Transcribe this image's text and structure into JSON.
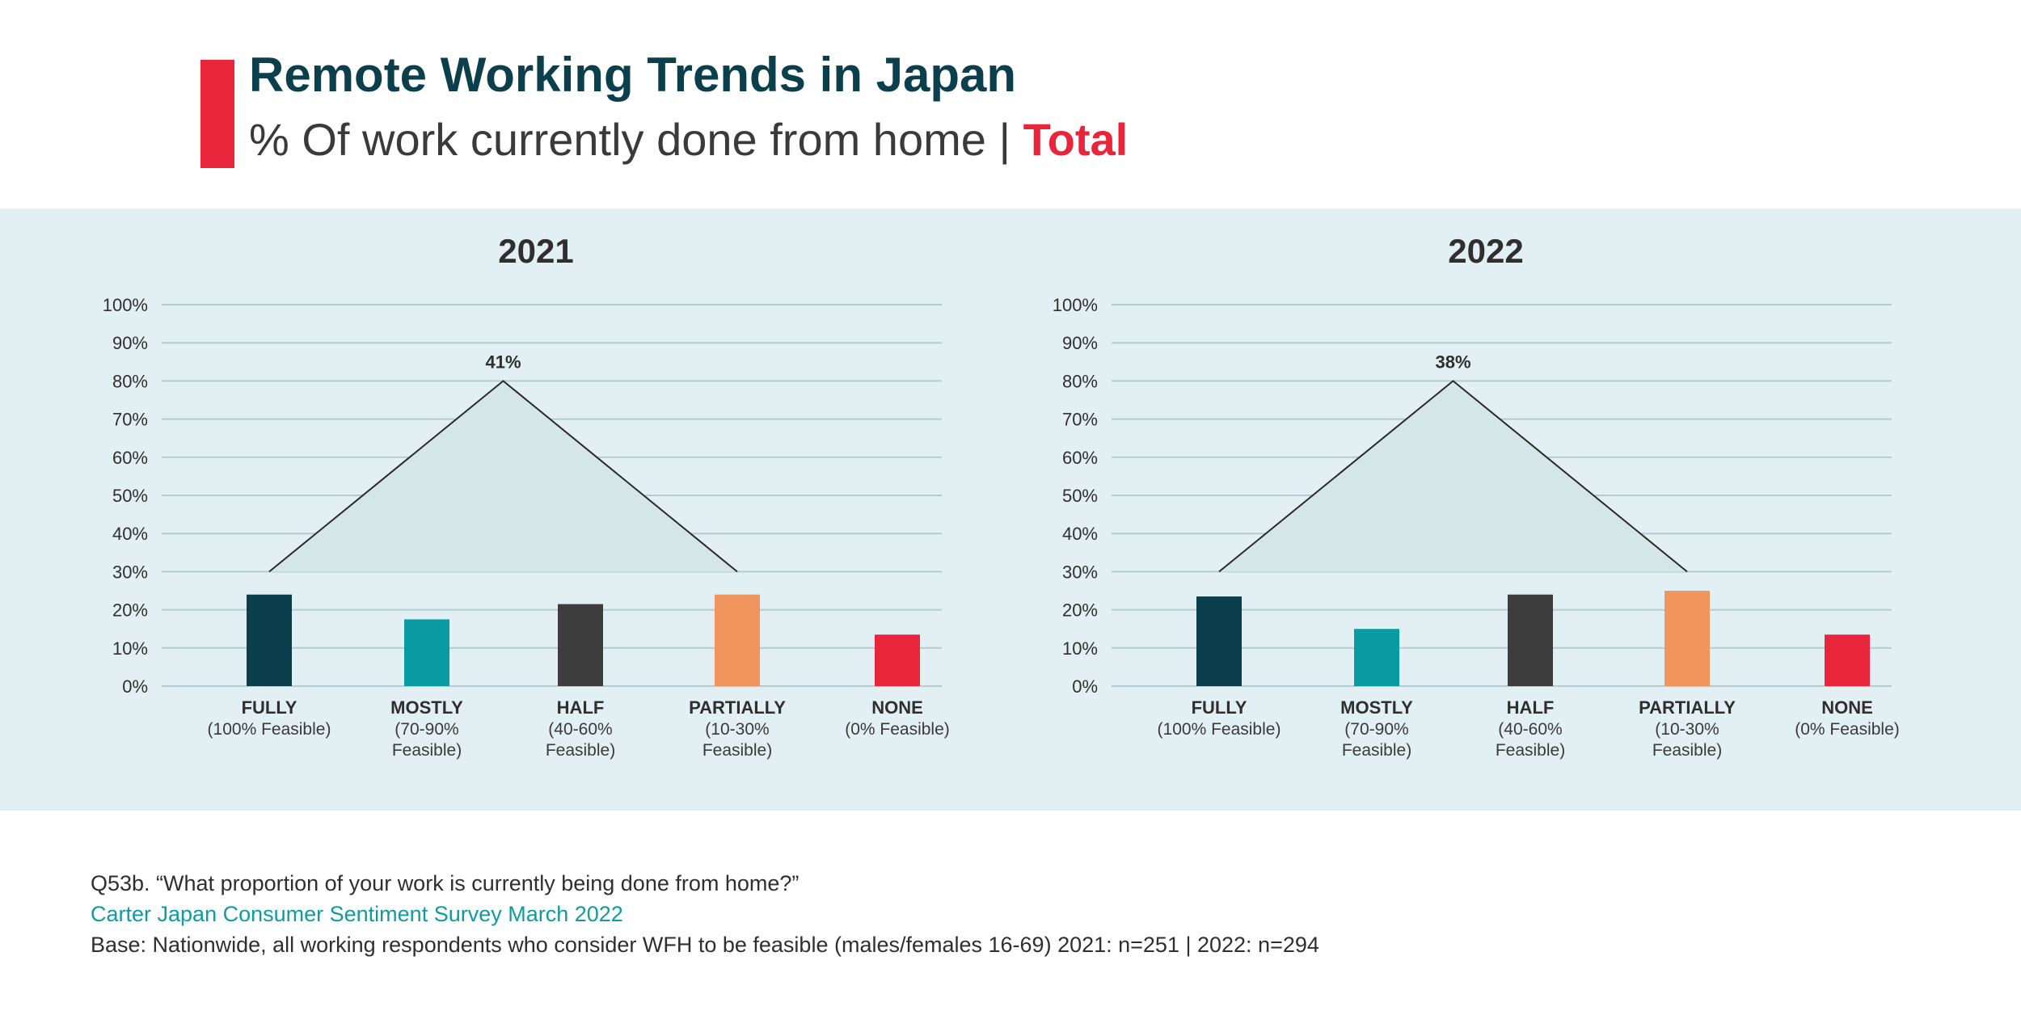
{
  "header": {
    "title": "Remote Working Trends in Japan",
    "subtitle_main": "% Of work currently done from home",
    "subtitle_sep": "|",
    "subtitle_highlight": "Total"
  },
  "colors": {
    "accent": "#e8253a",
    "title": "#0b3f4c",
    "band": "#e3f0f3",
    "grid": "#b5cbd1",
    "fully": "#0b3f4c",
    "mostly": "#0a9aa2",
    "half": "#3d3d3d",
    "partially": "#f0955e",
    "none": "#e8253a",
    "triangle_fill": "#d4e6e8",
    "triangle_line": "#2a2a2a"
  },
  "chart_data": [
    {
      "type": "bar",
      "title": "2021",
      "categories": [
        "FULLY",
        "MOSTLY",
        "HALF",
        "PARTIALLY",
        "NONE"
      ],
      "category_sublabels": [
        [
          "(100% Feasible)"
        ],
        [
          "(70-90%",
          "Feasible)"
        ],
        [
          "(40-60%",
          "Feasible)"
        ],
        [
          "(10-30%",
          "Feasible)"
        ],
        [
          "(0% Feasible)"
        ]
      ],
      "values": [
        24,
        17.5,
        21.5,
        24,
        13.5
      ],
      "bar_colors": [
        "#0b3f4c",
        "#0a9aa2",
        "#3d3d3d",
        "#f0955e",
        "#e8253a"
      ],
      "ylim": [
        0,
        100
      ],
      "yticks": [
        "0%",
        "10%",
        "20%",
        "30%",
        "40%",
        "50%",
        "60%",
        "70%",
        "80%",
        "90%",
        "100%"
      ],
      "grid": true,
      "annotation": {
        "label": "41%",
        "span": [
          "FULLY",
          "PARTIALLY"
        ],
        "base": 30,
        "peak": 80
      }
    },
    {
      "type": "bar",
      "title": "2022",
      "categories": [
        "FULLY",
        "MOSTLY",
        "HALF",
        "PARTIALLY",
        "NONE"
      ],
      "category_sublabels": [
        [
          "(100% Feasible)"
        ],
        [
          "(70-90%",
          "Feasible)"
        ],
        [
          "(40-60%",
          "Feasible)"
        ],
        [
          "(10-30%",
          "Feasible)"
        ],
        [
          "(0% Feasible)"
        ]
      ],
      "values": [
        23.5,
        15,
        24,
        25,
        13.5
      ],
      "bar_colors": [
        "#0b3f4c",
        "#0a9aa2",
        "#3d3d3d",
        "#f0955e",
        "#e8253a"
      ],
      "ylim": [
        0,
        100
      ],
      "yticks": [
        "0%",
        "10%",
        "20%",
        "30%",
        "40%",
        "50%",
        "60%",
        "70%",
        "80%",
        "90%",
        "100%"
      ],
      "grid": true,
      "annotation": {
        "label": "38%",
        "span": [
          "FULLY",
          "PARTIALLY"
        ],
        "base": 30,
        "peak": 80
      }
    }
  ],
  "footer": {
    "question": "Q53b. “What proportion of your work is currently being done from home?”",
    "source": "Carter Japan Consumer Sentiment Survey March 2022",
    "base": "Base: Nationwide, all working respondents who consider WFH to be feasible (males/females 16-69) 2021: n=251 | 2022: n=294"
  }
}
